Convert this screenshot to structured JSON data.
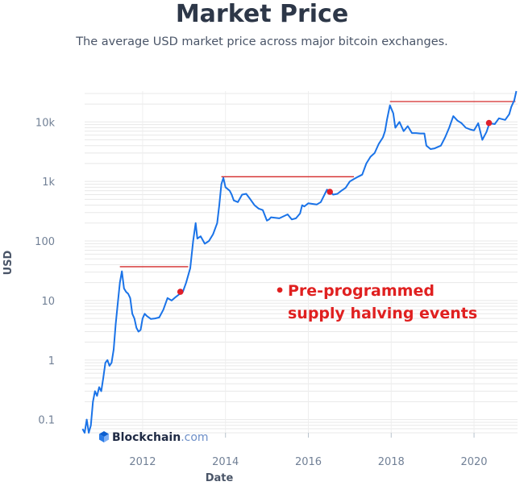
{
  "header": {
    "title": "Market Price",
    "subtitle": "The average USD market price across major bitcoin exchanges."
  },
  "colors": {
    "line": "#1a73e8",
    "halving_dot": "#e0202a",
    "ath_line": "#d42a2a",
    "annotation": "#e02020",
    "grid": "#e8e8e8"
  },
  "annotation": {
    "bullet": "•",
    "line1": "Pre-programmed",
    "line2": "supply halving events"
  },
  "brand": {
    "name": "Blockchain",
    "suffix": ".com",
    "icon": "blockchain-logo-icon"
  },
  "chart_data": {
    "type": "line",
    "title": "Market Price",
    "xlabel": "Date",
    "ylabel": "USD",
    "yscale": "log",
    "grid": true,
    "xlim": [
      2010.6,
      2021.05
    ],
    "ylim": [
      0.06,
      33000
    ],
    "x_ticks": [
      2012,
      2014,
      2016,
      2018,
      2020
    ],
    "x_tick_labels": [
      "2012",
      "2014",
      "2016",
      "2018",
      "2020"
    ],
    "y_ticks": [
      0.1,
      1,
      10,
      100,
      1000,
      10000
    ],
    "y_tick_labels": [
      "0.1",
      "1",
      "10",
      "100",
      "1k",
      "10k"
    ],
    "series": [
      {
        "points": [
          [
            2010.55,
            0.07
          ],
          [
            2010.6,
            0.06
          ],
          [
            2010.65,
            0.1
          ],
          [
            2010.7,
            0.06
          ],
          [
            2010.75,
            0.08
          ],
          [
            2010.8,
            0.2
          ],
          [
            2010.85,
            0.3
          ],
          [
            2010.9,
            0.25
          ],
          [
            2010.95,
            0.35
          ],
          [
            2011.0,
            0.3
          ],
          [
            2011.05,
            0.5
          ],
          [
            2011.1,
            0.9
          ],
          [
            2011.15,
            1.0
          ],
          [
            2011.2,
            0.8
          ],
          [
            2011.25,
            0.9
          ],
          [
            2011.3,
            1.5
          ],
          [
            2011.35,
            4
          ],
          [
            2011.4,
            9
          ],
          [
            2011.45,
            20
          ],
          [
            2011.5,
            31
          ],
          [
            2011.55,
            16
          ],
          [
            2011.6,
            14
          ],
          [
            2011.65,
            13
          ],
          [
            2011.7,
            11
          ],
          [
            2011.75,
            6
          ],
          [
            2011.8,
            5
          ],
          [
            2011.85,
            3.5
          ],
          [
            2011.9,
            3
          ],
          [
            2011.95,
            3.2
          ],
          [
            2012.0,
            5
          ],
          [
            2012.05,
            6
          ],
          [
            2012.1,
            5.5
          ],
          [
            2012.2,
            4.9
          ],
          [
            2012.3,
            5
          ],
          [
            2012.4,
            5.2
          ],
          [
            2012.5,
            7
          ],
          [
            2012.6,
            11
          ],
          [
            2012.7,
            10
          ],
          [
            2012.8,
            11.5
          ],
          [
            2012.9,
            13
          ],
          [
            2012.97,
            14
          ],
          [
            2013.05,
            20
          ],
          [
            2013.15,
            35
          ],
          [
            2013.22,
            100
          ],
          [
            2013.28,
            200
          ],
          [
            2013.32,
            110
          ],
          [
            2013.4,
            120
          ],
          [
            2013.5,
            90
          ],
          [
            2013.6,
            100
          ],
          [
            2013.7,
            130
          ],
          [
            2013.8,
            200
          ],
          [
            2013.85,
            400
          ],
          [
            2013.9,
            900
          ],
          [
            2013.95,
            1150
          ],
          [
            2014.0,
            800
          ],
          [
            2014.1,
            700
          ],
          [
            2014.15,
            600
          ],
          [
            2014.2,
            480
          ],
          [
            2014.3,
            450
          ],
          [
            2014.4,
            600
          ],
          [
            2014.5,
            620
          ],
          [
            2014.6,
            500
          ],
          [
            2014.7,
            400
          ],
          [
            2014.8,
            350
          ],
          [
            2014.9,
            330
          ],
          [
            2015.0,
            220
          ],
          [
            2015.05,
            230
          ],
          [
            2015.1,
            250
          ],
          [
            2015.3,
            240
          ],
          [
            2015.5,
            280
          ],
          [
            2015.6,
            230
          ],
          [
            2015.7,
            240
          ],
          [
            2015.8,
            290
          ],
          [
            2015.85,
            400
          ],
          [
            2015.9,
            380
          ],
          [
            2016.0,
            430
          ],
          [
            2016.2,
            410
          ],
          [
            2016.3,
            450
          ],
          [
            2016.45,
            730
          ],
          [
            2016.53,
            670
          ],
          [
            2016.6,
            600
          ],
          [
            2016.7,
            620
          ],
          [
            2016.8,
            700
          ],
          [
            2016.9,
            780
          ],
          [
            2017.0,
            1000
          ],
          [
            2017.1,
            1100
          ],
          [
            2017.2,
            1200
          ],
          [
            2017.3,
            1300
          ],
          [
            2017.4,
            2000
          ],
          [
            2017.5,
            2600
          ],
          [
            2017.6,
            3000
          ],
          [
            2017.7,
            4300
          ],
          [
            2017.8,
            5500
          ],
          [
            2017.85,
            7000
          ],
          [
            2017.9,
            11000
          ],
          [
            2017.97,
            19000
          ],
          [
            2018.05,
            14000
          ],
          [
            2018.1,
            8000
          ],
          [
            2018.2,
            10000
          ],
          [
            2018.3,
            7000
          ],
          [
            2018.4,
            8500
          ],
          [
            2018.5,
            6500
          ],
          [
            2018.6,
            6500
          ],
          [
            2018.7,
            6400
          ],
          [
            2018.8,
            6400
          ],
          [
            2018.85,
            4000
          ],
          [
            2018.95,
            3500
          ],
          [
            2019.05,
            3600
          ],
          [
            2019.2,
            4000
          ],
          [
            2019.3,
            5500
          ],
          [
            2019.4,
            8000
          ],
          [
            2019.5,
            12500
          ],
          [
            2019.6,
            10500
          ],
          [
            2019.7,
            9500
          ],
          [
            2019.8,
            8000
          ],
          [
            2019.9,
            7500
          ],
          [
            2020.0,
            7200
          ],
          [
            2020.1,
            9500
          ],
          [
            2020.2,
            5000
          ],
          [
            2020.3,
            6800
          ],
          [
            2020.37,
            9500
          ],
          [
            2020.5,
            9200
          ],
          [
            2020.6,
            11500
          ],
          [
            2020.75,
            10800
          ],
          [
            2020.85,
            13500
          ],
          [
            2020.9,
            18000
          ],
          [
            2020.97,
            23000
          ],
          [
            2021.02,
            33000
          ]
        ]
      }
    ],
    "halving_events": [
      {
        "date": "2012-11-28",
        "x": 2012.91,
        "y": 14
      },
      {
        "date": "2016-07-09",
        "x": 2016.52,
        "y": 670
      },
      {
        "date": "2020-05-11",
        "x": 2020.36,
        "y": 9600
      }
    ],
    "previous_high_lines": [
      {
        "y": 37,
        "x_start": 2011.45,
        "x_end": 2013.1
      },
      {
        "y": 1200,
        "x_start": 2013.9,
        "x_end": 2017.1
      },
      {
        "y": 22000,
        "x_start": 2017.97,
        "x_end": 2021.0
      }
    ]
  }
}
